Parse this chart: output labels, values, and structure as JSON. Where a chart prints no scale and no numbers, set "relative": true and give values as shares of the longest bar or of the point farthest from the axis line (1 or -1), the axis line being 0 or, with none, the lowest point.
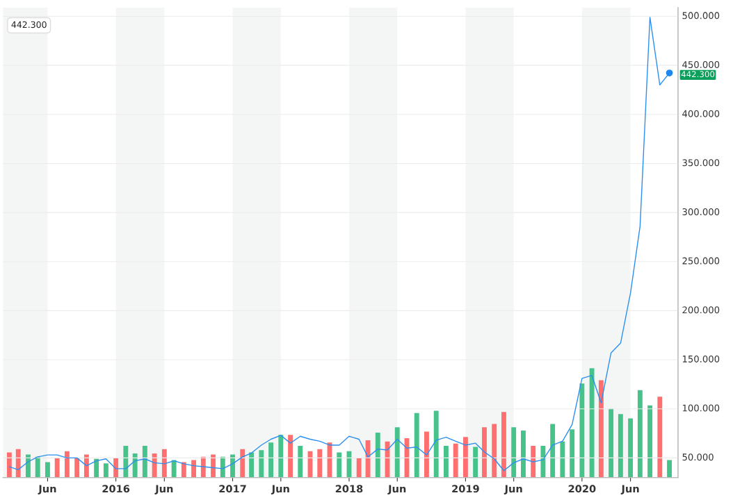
{
  "chart_data": [
    {
      "type": "line",
      "x": [
        "2015-02",
        "2015-03",
        "2015-04",
        "2015-05",
        "2015-06",
        "2015-07",
        "2015-08",
        "2015-09",
        "2015-10",
        "2015-11",
        "2015-12",
        "2016-01",
        "2016-02",
        "2016-03",
        "2016-04",
        "2016-05",
        "2016-06",
        "2016-07",
        "2016-08",
        "2016-09",
        "2016-10",
        "2016-11",
        "2016-12",
        "2017-01",
        "2017-02",
        "2017-03",
        "2017-04",
        "2017-05",
        "2017-06",
        "2017-07",
        "2017-08",
        "2017-09",
        "2017-10",
        "2017-11",
        "2017-12",
        "2018-01",
        "2018-02",
        "2018-03",
        "2018-04",
        "2018-05",
        "2018-06",
        "2018-07",
        "2018-08",
        "2018-09",
        "2018-10",
        "2018-11",
        "2018-12",
        "2019-01",
        "2019-02",
        "2019-03",
        "2019-04",
        "2019-05",
        "2019-06",
        "2019-07",
        "2019-08",
        "2019-09",
        "2019-10",
        "2019-11",
        "2019-12",
        "2020-01",
        "2020-02",
        "2020-03",
        "2020-04",
        "2020-05",
        "2020-06",
        "2020-07",
        "2020-08",
        "2020-09",
        "2020-10"
      ],
      "series": [
        {
          "color": "#2b8ff0",
          "values": [
            41,
            38,
            46,
            51,
            53,
            53,
            50,
            50,
            42,
            47,
            49,
            39,
            39,
            47,
            49,
            45,
            44,
            47,
            44,
            42,
            41,
            40,
            39,
            44,
            51,
            55,
            63,
            69,
            73,
            65,
            72,
            69,
            67,
            63,
            63,
            72,
            69,
            51,
            59,
            58,
            69,
            60,
            61,
            53,
            68,
            71,
            67,
            63,
            65,
            56,
            49,
            37,
            45,
            49,
            46,
            48,
            63,
            67,
            84,
            131,
            134,
            106,
            157,
            167,
            218,
            286,
            499,
            430,
            442.3
          ]
        }
      ],
      "xlim": [
        "2015-01-12",
        "2020-10-28"
      ],
      "xticks": [
        {
          "value": "2015-06",
          "label": "Jun"
        },
        {
          "value": "2016-01",
          "label": "2016"
        },
        {
          "value": "2016-06",
          "label": "Jun"
        },
        {
          "value": "2017-01",
          "label": "2017"
        },
        {
          "value": "2017-06",
          "label": "Jun"
        },
        {
          "value": "2018-01",
          "label": "2018"
        },
        {
          "value": "2018-06",
          "label": "Jun"
        },
        {
          "value": "2019-01",
          "label": "2019"
        },
        {
          "value": "2019-06",
          "label": "Jun"
        },
        {
          "value": "2020-01",
          "label": "2020"
        },
        {
          "value": "2020-06",
          "label": "Jun"
        }
      ],
      "ylim": [
        30,
        509
      ],
      "yticks": [
        {
          "value": 50,
          "label": "50.000"
        },
        {
          "value": 100,
          "label": "100.000"
        },
        {
          "value": 150,
          "label": "150.000"
        },
        {
          "value": 200,
          "label": "200.000"
        },
        {
          "value": 250,
          "label": "250.000"
        },
        {
          "value": 300,
          "label": "300.000"
        },
        {
          "value": 350,
          "label": "350.000"
        },
        {
          "value": 400,
          "label": "400.000"
        },
        {
          "value": 450,
          "label": "450.000"
        },
        {
          "value": 500,
          "label": "500.000"
        }
      ],
      "grid": "y",
      "bands": [
        {
          "axis": "x",
          "from": "2015-01-12",
          "to": "2015-06",
          "color": "#f4f6f5"
        },
        {
          "axis": "x",
          "from": "2016-01",
          "to": "2016-06",
          "color": "#f4f6f5"
        },
        {
          "axis": "x",
          "from": "2017-01",
          "to": "2017-06",
          "color": "#f4f6f5"
        },
        {
          "axis": "x",
          "from": "2018-01",
          "to": "2018-06",
          "color": "#f4f6f5"
        },
        {
          "axis": "x",
          "from": "2019-01",
          "to": "2019-06",
          "color": "#f4f6f5"
        },
        {
          "axis": "x",
          "from": "2020-01",
          "to": "2020-06",
          "color": "#f4f6f5"
        }
      ],
      "annotations": [
        {
          "text": "442.300",
          "x": "2020-10",
          "y": 442.3
        },
        "442.300"
      ]
    },
    {
      "type": "bar",
      "x": [
        "2015-02",
        "2015-03",
        "2015-04",
        "2015-05",
        "2015-06",
        "2015-07",
        "2015-08",
        "2015-09",
        "2015-10",
        "2015-11",
        "2015-12",
        "2016-01",
        "2016-02",
        "2016-03",
        "2016-04",
        "2016-05",
        "2016-06",
        "2016-07",
        "2016-08",
        "2016-09",
        "2016-10",
        "2016-11",
        "2016-12",
        "2017-01",
        "2017-02",
        "2017-03",
        "2017-04",
        "2017-05",
        "2017-06",
        "2017-07",
        "2017-08",
        "2017-09",
        "2017-10",
        "2017-11",
        "2017-12",
        "2018-01",
        "2018-02",
        "2018-03",
        "2018-04",
        "2018-05",
        "2018-06",
        "2018-07",
        "2018-08",
        "2018-09",
        "2018-10",
        "2018-11",
        "2018-12",
        "2019-01",
        "2019-02",
        "2019-03",
        "2019-04",
        "2019-05",
        "2019-06",
        "2019-07",
        "2019-08",
        "2019-09",
        "2019-10",
        "2019-11",
        "2019-12",
        "2020-01",
        "2020-02",
        "2020-03",
        "2020-04",
        "2020-05",
        "2020-06",
        "2020-07",
        "2020-08",
        "2020-09",
        "2020-10"
      ],
      "relative": true,
      "tick_labels": false,
      "xlim": [
        "2015-01-12",
        "2020-10-28"
      ],
      "values": [
        0.23,
        0.26,
        0.21,
        0.19,
        0.14,
        0.18,
        0.24,
        0.18,
        0.21,
        0.17,
        0.13,
        0.18,
        0.29,
        0.22,
        0.29,
        0.22,
        0.26,
        0.16,
        0.14,
        0.16,
        0.19,
        0.21,
        0.19,
        0.21,
        0.26,
        0.23,
        0.25,
        0.32,
        0.39,
        0.39,
        0.29,
        0.24,
        0.26,
        0.32,
        0.23,
        0.24,
        0.18,
        0.34,
        0.41,
        0.33,
        0.46,
        0.36,
        0.59,
        0.42,
        0.61,
        0.29,
        0.31,
        0.37,
        0.28,
        0.46,
        0.49,
        0.6,
        0.46,
        0.43,
        0.29,
        0.29,
        0.49,
        0.33,
        0.44,
        0.86,
        1,
        0.89,
        0.63,
        0.58,
        0.54,
        0.8,
        0.66,
        0.74,
        0.16
      ],
      "colors": [
        "#ff6f6f",
        "#ff6f6f",
        "#46c28a",
        "#46c28a",
        "#46c28a",
        "#ff6f6f",
        "#ff6f6f",
        "#ff6f6f",
        "#ff6f6f",
        "#46c28a",
        "#46c28a",
        "#ff6f6f",
        "#46c28a",
        "#46c28a",
        "#46c28a",
        "#ff6f6f",
        "#ff6f6f",
        "#46c28a",
        "#ff6f6f",
        "#ff6f6f",
        "#ff6f6f",
        "#ff6f6f",
        "#46c28a",
        "#46c28a",
        "#ff6f6f",
        "#46c28a",
        "#46c28a",
        "#46c28a",
        "#46c28a",
        "#ff6f6f",
        "#46c28a",
        "#ff6f6f",
        "#ff6f6f",
        "#ff6f6f",
        "#46c28a",
        "#46c28a",
        "#ff6f6f",
        "#ff6f6f",
        "#46c28a",
        "#ff6f6f",
        "#46c28a",
        "#ff6f6f",
        "#46c28a",
        "#ff6f6f",
        "#46c28a",
        "#46c28a",
        "#ff6f6f",
        "#ff6f6f",
        "#46c28a",
        "#ff6f6f",
        "#ff6f6f",
        "#ff6f6f",
        "#46c28a",
        "#46c28a",
        "#ff6f6f",
        "#46c28a",
        "#46c28a",
        "#46c28a",
        "#46c28a",
        "#46c28a",
        "#46c28a",
        "#ff6f6f",
        "#46c28a",
        "#46c28a",
        "#46c28a",
        "#46c28a",
        "#46c28a",
        "#ff6f6f",
        "#46c28a"
      ]
    }
  ]
}
